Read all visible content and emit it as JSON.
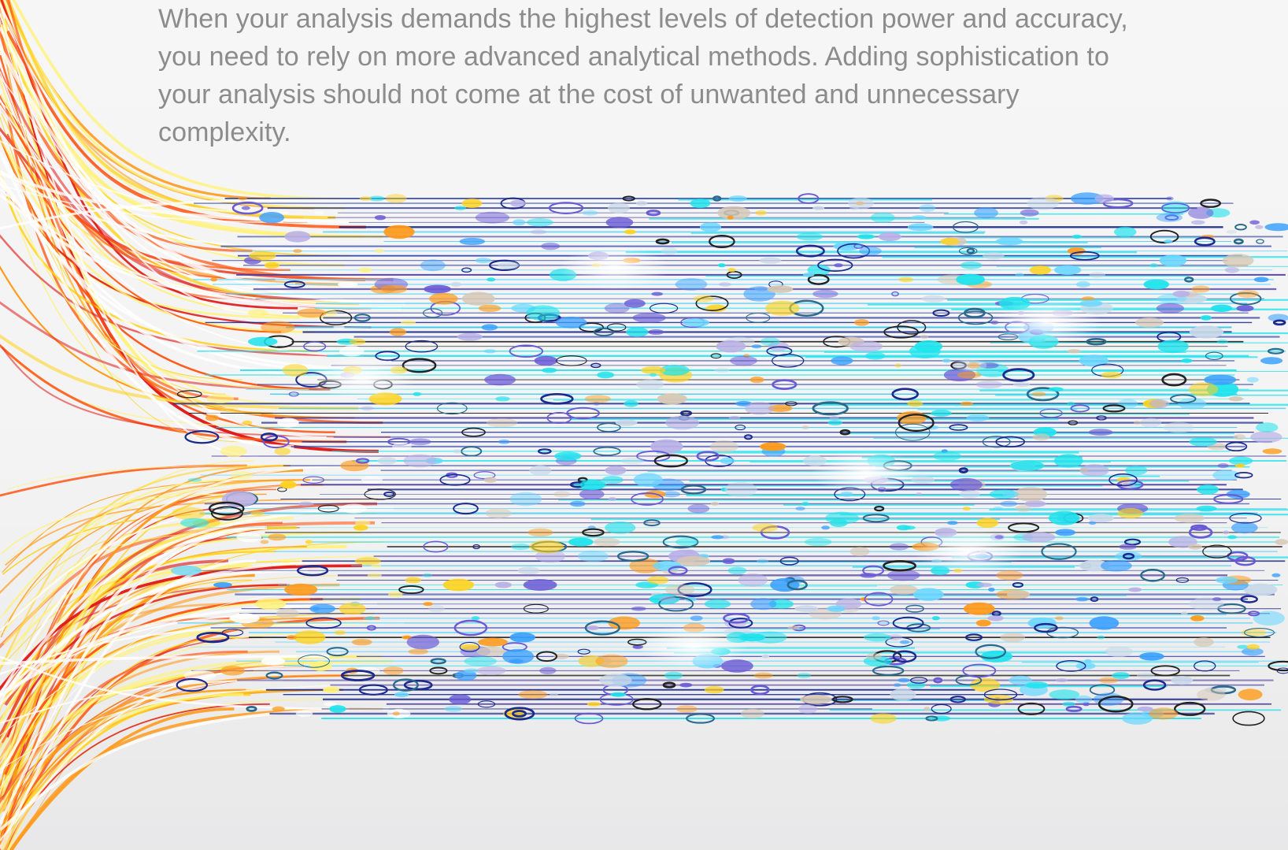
{
  "intro": {
    "text": "When your analysis demands the highest levels of detection power and accuracy, you need to rely on more advanced analytical methods. Adding sophistication to your analysis should not come at the cost of unwanted and unnecessary complexity."
  },
  "artwork": {
    "icon": "flowing-data-streams-illustration",
    "colors": {
      "warm": [
        "#ffd21a",
        "#ff9a1a",
        "#ff5a1a",
        "#e01b1b",
        "#fff27a"
      ],
      "cool": [
        "#1ee3ec",
        "#3aa0ff",
        "#1b2a8c",
        "#6a5ad6",
        "#111111"
      ],
      "background_top": "#f6f6f6",
      "background_bottom": "#e8e8e9"
    }
  }
}
